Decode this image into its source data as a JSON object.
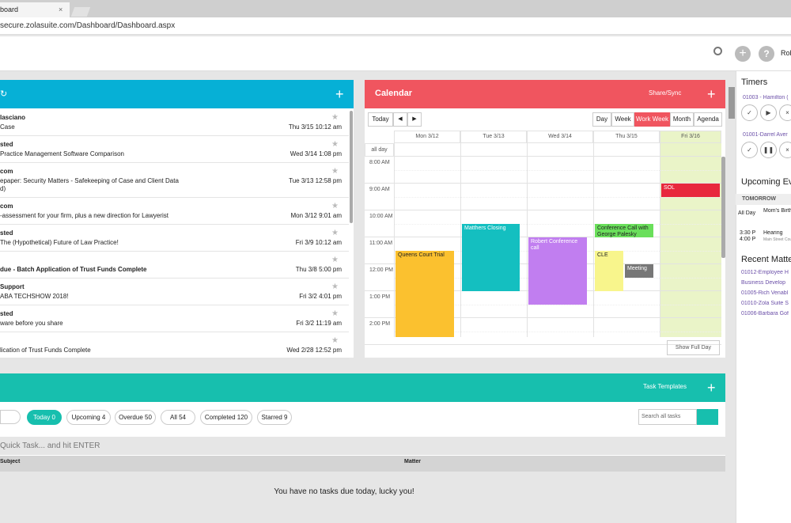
{
  "browser": {
    "tab_title": "board",
    "url": "secure.zolasuite.com/Dashboard/Dashboard.aspx"
  },
  "header": {
    "user": "Rob"
  },
  "emails": [
    {
      "sender": "lasciano",
      "subject": "Case",
      "date": "Thu 3/15 10:12 am"
    },
    {
      "sender": "sted",
      "subject": "Practice Management Software Comparison",
      "date": "Wed 3/14 1:08 pm"
    },
    {
      "sender": "com",
      "subject": "epaper: Security Matters - Safekeeping of Case and Client Data",
      "subject2": "d)",
      "date": "Tue 3/13 12:58 pm"
    },
    {
      "sender": "com",
      "subject": "-assessment for your firm, plus a new direction for Lawyerist",
      "date": "Mon 3/12 9:01 am"
    },
    {
      "sender": "sted",
      "subject": "The (Hypothetical) Future of Law Practice!",
      "date": "Fri 3/9 10:12 am"
    },
    {
      "subject": "due - Batch Application of Trust Funds Complete",
      "date": "Thu 3/8 5:00 pm"
    },
    {
      "sender": "Support",
      "subject": "ABA TECHSHOW 2018!",
      "date": "Fri 3/2 4:01 pm"
    },
    {
      "sender": "sted",
      "subject": "ware before you share",
      "date": "Fri 3/2 11:19 am"
    },
    {
      "subject": "lication of Trust Funds Complete",
      "date": "Wed 2/28 12:52 pm"
    }
  ],
  "calendar": {
    "title": "Calendar",
    "share": "Share/Sync",
    "today": "Today",
    "views": [
      "Day",
      "Week",
      "Work Week",
      "Month",
      "Agenda"
    ],
    "days": [
      "Mon 3/12",
      "Tue 3/13",
      "Wed 3/14",
      "Thu 3/15",
      "Fri 3/16"
    ],
    "all_day": "all day",
    "times": [
      "8:00 AM",
      "9:00 AM",
      "10:00 AM",
      "11:00 AM",
      "12:00 PM",
      "1:00 PM",
      "2:00 PM"
    ],
    "events": [
      "Queens Court Trial",
      "Matthers Closing",
      "Robert Conference call",
      "Conference Call with George Palesky",
      "CLE",
      "Meeting",
      "SOL"
    ],
    "show_full_day": "Show Full Day"
  },
  "tasks": {
    "templates": "Task Templates",
    "filters": [
      "Today 0",
      "Upcoming 4",
      "Overdue 50",
      "All 54",
      "Completed 120",
      "Starred 9"
    ],
    "search": "Search all tasks",
    "quick": "Quick Task... and hit ENTER",
    "columns": [
      "Subject",
      "Matter"
    ],
    "empty": "You have no tasks due today, lucky you!"
  },
  "sidebar": {
    "timers_title": "Timers",
    "timers": [
      "01003 - Hamilton (",
      "01001-Darrel Aver"
    ],
    "upcoming_title": "Upcoming Ev",
    "tomorrow": "TOMORROW",
    "upcoming": [
      {
        "time": "All Day",
        "title": "Mom's Birth"
      },
      {
        "time": "3:30 P",
        "time2": "4:00 P",
        "title": "Hearing",
        "place": "Main Street Courth"
      }
    ],
    "recent_title": "Recent Matte",
    "recent": [
      "01012-Employee H",
      "Business Develop",
      "01005-Rich Venabl",
      "01010-Zola Suite S",
      "01006-Barbara Gof"
    ]
  }
}
